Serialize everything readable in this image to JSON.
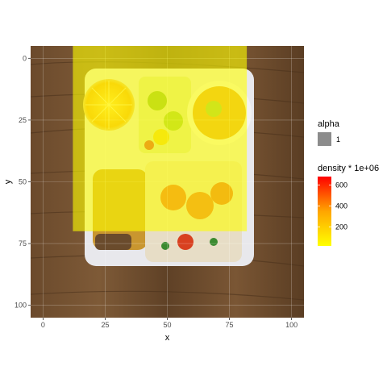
{
  "chart_data": {
    "type": "heatmap",
    "title": "",
    "xlabel": "x",
    "ylabel": "y",
    "xlim": [
      -5,
      105
    ],
    "ylim": [
      105,
      -5
    ],
    "y_reversed": true,
    "x_ticks": [
      0,
      25,
      50,
      75,
      100
    ],
    "y_ticks": [
      0,
      25,
      50,
      75,
      100
    ],
    "x_tick_labels": [
      "0",
      "25",
      "50",
      "75",
      "100"
    ],
    "y_tick_labels": [
      "0",
      "25",
      "50",
      "75",
      "100"
    ],
    "grid": true,
    "background_image": "photo of a tray meal: orange slices, salad, soup bowl, shrimp with rice, fried cutlet on wooden table",
    "overlay": {
      "x_range": [
        12,
        82
      ],
      "y_range": [
        -5,
        70
      ],
      "color": "#ffff00",
      "alpha": 0.6
    },
    "legend_position": "right",
    "legend": {
      "alpha": {
        "title": "alpha",
        "entries": [
          {
            "label": "1",
            "color": "#8c8c8c"
          }
        ]
      },
      "density": {
        "title": "density * 1e+06",
        "ticks": [
          200,
          400,
          600
        ],
        "tick_labels": [
          "200",
          "400",
          "600"
        ],
        "range": [
          20,
          680
        ],
        "colors": [
          "#ffff00",
          "#ffa500",
          "#ff0000"
        ]
      }
    }
  }
}
